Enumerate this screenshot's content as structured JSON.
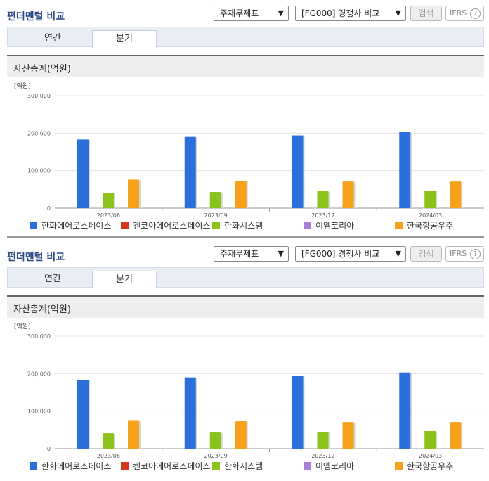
{
  "panels": [
    {
      "title": "펀더멘털 비교",
      "select_statement": "주재무제표",
      "select_group": "[FG000] 경쟁사 비교",
      "search_label": "검색",
      "ifrs_label": "IFRS",
      "ifrs_help": "?",
      "tabs": [
        {
          "label": "연간",
          "active": false
        },
        {
          "label": "분기",
          "active": true
        }
      ],
      "section_title": "자산총계(억원)"
    },
    {
      "title": "펀더멘털 비교",
      "select_statement": "주재무제표",
      "select_group": "[FG000] 경쟁사 비교",
      "search_label": "검색",
      "ifrs_label": "IFRS",
      "ifrs_help": "?",
      "tabs": [
        {
          "label": "연간",
          "active": false
        },
        {
          "label": "분기",
          "active": true
        }
      ],
      "section_title": "자산총계(억원)"
    }
  ],
  "chart_data": [
    {
      "type": "bar",
      "ylabel": "[억원]",
      "ylim": [
        0,
        300000
      ],
      "yticks": [
        "300,000",
        "200,000",
        "100,000",
        "0"
      ],
      "categories": [
        "2023/06",
        "2023/09",
        "2023/12",
        "2024/03"
      ],
      "legend_position": "bottom",
      "grid": true,
      "series": [
        {
          "name": "한화에어로스페이스",
          "color": "#2a6fdb",
          "values": [
            183000,
            190000,
            194000,
            203000
          ]
        },
        {
          "name": "켄코아에어로스페이스",
          "color": "#d43a1a",
          "values": [
            null,
            null,
            null,
            null
          ]
        },
        {
          "name": "한화시스템",
          "color": "#8cc21c",
          "values": [
            41000,
            43000,
            45000,
            47000
          ]
        },
        {
          "name": "이엠코리아",
          "color": "#a87fd6",
          "values": [
            null,
            null,
            null,
            null
          ]
        },
        {
          "name": "한국항공우주",
          "color": "#f7a11a",
          "values": [
            76000,
            73000,
            71000,
            71000
          ]
        }
      ]
    },
    {
      "type": "bar",
      "ylabel": "[억원]",
      "ylim": [
        0,
        300000
      ],
      "yticks": [
        "300,000",
        "200,000",
        "100,000",
        "0"
      ],
      "categories": [
        "2023/06",
        "2023/09",
        "2023/12",
        "2024/03"
      ],
      "legend_position": "bottom",
      "grid": true,
      "series": [
        {
          "name": "한화에어로스페이스",
          "color": "#2a6fdb",
          "values": [
            183000,
            190000,
            194000,
            203000
          ]
        },
        {
          "name": "켄코아에어로스페이스",
          "color": "#d43a1a",
          "values": [
            null,
            null,
            null,
            null
          ]
        },
        {
          "name": "한화시스템",
          "color": "#8cc21c",
          "values": [
            41000,
            43000,
            45000,
            47000
          ]
        },
        {
          "name": "이엠코리아",
          "color": "#a87fd6",
          "values": [
            null,
            null,
            null,
            null
          ]
        },
        {
          "name": "한국항공우주",
          "color": "#f7a11a",
          "values": [
            76000,
            73000,
            71000,
            71000
          ]
        }
      ]
    }
  ]
}
